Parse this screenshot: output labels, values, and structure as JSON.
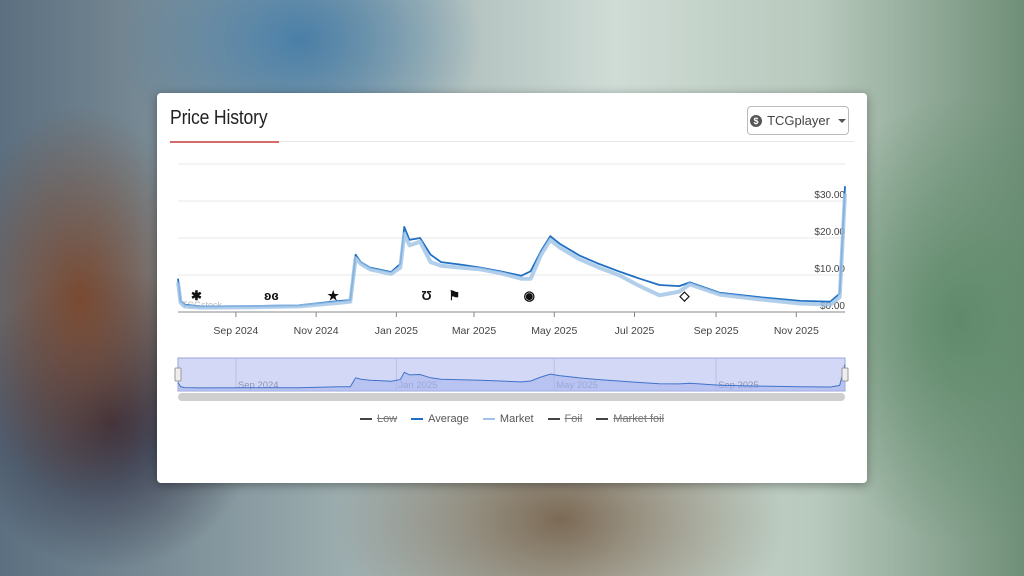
{
  "card": {
    "title": "Price History",
    "source_selector": {
      "label": "TCGplayer",
      "icon": "dollar-circle-icon"
    }
  },
  "chart_data": {
    "type": "line",
    "title": "",
    "xlabel": "",
    "ylabel": "",
    "x_range": [
      "2024-07-19",
      "2025-12-08"
    ],
    "ylim": [
      0,
      40
    ],
    "y_ticks": [
      "$0.00",
      "$10.00",
      "$20.00",
      "$30.00"
    ],
    "y_tick_values": [
      0,
      10,
      20,
      30
    ],
    "x_ticks": [
      "Sep 2024",
      "Nov 2024",
      "Jan 2025",
      "Mar 2025",
      "May 2025",
      "Jul 2025",
      "Sep 2025",
      "Nov 2025"
    ],
    "x_tick_dates": [
      "2024-09-01",
      "2024-11-01",
      "2025-01-01",
      "2025-03-01",
      "2025-05-01",
      "2025-07-01",
      "2025-09-01",
      "2025-11-01"
    ],
    "grid": true,
    "y_axis_side": "right",
    "legend_position": "bottom",
    "watermark": "TCGstock",
    "series": [
      {
        "name": "Low",
        "visible": false,
        "color": "#444444"
      },
      {
        "name": "Average",
        "visible": true,
        "color": "#1f6fc4",
        "points": [
          [
            "2024-07-19",
            9
          ],
          [
            "2024-07-21",
            3
          ],
          [
            "2024-07-24",
            2
          ],
          [
            "2024-08-05",
            1.5
          ],
          [
            "2024-09-12",
            1.6
          ],
          [
            "2024-10-19",
            1.8
          ],
          [
            "2024-11-19",
            3
          ],
          [
            "2024-11-27",
            3.2
          ],
          [
            "2024-12-01",
            15.5
          ],
          [
            "2024-12-05",
            13.5
          ],
          [
            "2024-12-12",
            12
          ],
          [
            "2024-12-28",
            10.8
          ],
          [
            "2025-01-04",
            13
          ],
          [
            "2025-01-07",
            23
          ],
          [
            "2025-01-11",
            19.5
          ],
          [
            "2025-01-19",
            20
          ],
          [
            "2025-01-27",
            15.5
          ],
          [
            "2025-02-04",
            13.5
          ],
          [
            "2025-02-19",
            12.8
          ],
          [
            "2025-03-06",
            12
          ],
          [
            "2025-03-21",
            11
          ],
          [
            "2025-04-06",
            9.8
          ],
          [
            "2025-04-13",
            11
          ],
          [
            "2025-04-21",
            16.5
          ],
          [
            "2025-04-28",
            20.5
          ],
          [
            "2025-05-05",
            18.5
          ],
          [
            "2025-05-20",
            15.3
          ],
          [
            "2025-06-04",
            13
          ],
          [
            "2025-06-19",
            11
          ],
          [
            "2025-07-05",
            9
          ],
          [
            "2025-07-20",
            7.3
          ],
          [
            "2025-08-04",
            7
          ],
          [
            "2025-08-12",
            8
          ],
          [
            "2025-09-04",
            5.2
          ],
          [
            "2025-10-04",
            4
          ],
          [
            "2025-11-04",
            3
          ],
          [
            "2025-11-27",
            2.8
          ],
          [
            "2025-12-04",
            5
          ],
          [
            "2025-12-08",
            34
          ]
        ]
      },
      {
        "name": "Market",
        "visible": true,
        "color": "#9ec3e6",
        "points": [
          [
            "2024-07-19",
            8
          ],
          [
            "2024-07-21",
            2.5
          ],
          [
            "2024-07-24",
            1.5
          ],
          [
            "2024-08-05",
            1.2
          ],
          [
            "2024-09-12",
            1.3
          ],
          [
            "2024-10-19",
            1.5
          ],
          [
            "2024-11-19",
            2.5
          ],
          [
            "2024-11-27",
            2.8
          ],
          [
            "2024-12-01",
            14.5
          ],
          [
            "2024-12-05",
            13
          ],
          [
            "2024-12-12",
            11.5
          ],
          [
            "2024-12-28",
            10.3
          ],
          [
            "2025-01-04",
            12
          ],
          [
            "2025-01-07",
            21
          ],
          [
            "2025-01-11",
            18
          ],
          [
            "2025-01-19",
            19
          ],
          [
            "2025-01-27",
            13.5
          ],
          [
            "2025-02-04",
            12.5
          ],
          [
            "2025-02-19",
            12
          ],
          [
            "2025-03-06",
            11.5
          ],
          [
            "2025-03-21",
            10.5
          ],
          [
            "2025-04-06",
            9
          ],
          [
            "2025-04-13",
            9
          ],
          [
            "2025-04-21",
            15.5
          ],
          [
            "2025-04-28",
            19.5
          ],
          [
            "2025-05-05",
            17.5
          ],
          [
            "2025-05-20",
            14.3
          ],
          [
            "2025-06-04",
            12
          ],
          [
            "2025-06-19",
            10
          ],
          [
            "2025-07-05",
            7
          ],
          [
            "2025-07-20",
            4.5
          ],
          [
            "2025-08-04",
            5.5
          ],
          [
            "2025-08-12",
            7.5
          ],
          [
            "2025-09-04",
            4.7
          ],
          [
            "2025-10-04",
            3.4
          ],
          [
            "2025-11-04",
            2.3
          ],
          [
            "2025-11-27",
            2
          ],
          [
            "2025-12-04",
            4
          ],
          [
            "2025-12-08",
            32
          ]
        ]
      },
      {
        "name": "Foil",
        "visible": false,
        "color": "#444444"
      },
      {
        "name": "Market foil",
        "visible": false,
        "color": "#444444"
      }
    ],
    "set_markers": [
      {
        "date": "2024-08-02",
        "icon": "maple-leaf-set-icon",
        "glyph": "✱"
      },
      {
        "date": "2024-09-28",
        "icon": "butterfly-set-icon",
        "glyph": "ʚɞ"
      },
      {
        "date": "2024-11-14",
        "icon": "star-set-icon",
        "glyph": "★"
      },
      {
        "date": "2025-01-24",
        "icon": "horseshoe-set-icon",
        "glyph": "Ʊ"
      },
      {
        "date": "2025-02-14",
        "icon": "checkered-flag-set-icon",
        "glyph": "⚑"
      },
      {
        "date": "2025-04-12",
        "icon": "cycle-set-icon",
        "glyph": "◉"
      },
      {
        "date": "2025-08-08",
        "icon": "ufo-set-icon",
        "glyph": "◇"
      }
    ],
    "navigator": {
      "labels": [
        "Sep 2024",
        "Jan 2025",
        "May 2025",
        "Sep 2025"
      ],
      "label_dates": [
        "2024-09-01",
        "2025-01-01",
        "2025-05-01",
        "2025-09-01"
      ],
      "selected_range": [
        "2024-07-19",
        "2025-12-08"
      ]
    }
  }
}
